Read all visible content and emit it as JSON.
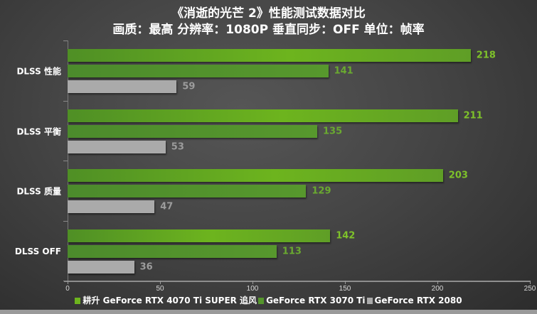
{
  "title": {
    "line1": "《消逝的光芒 2》性能测试数据对比",
    "line2": "画质：最高 分辨率：1080P 垂直同步：OFF 单位：帧率"
  },
  "chart_data": {
    "type": "bar",
    "orientation": "horizontal",
    "title": "《消逝的光芒 2》性能测试数据对比",
    "subtitle": "画质：最高 分辨率：1080P 垂直同步：OFF 单位：帧率",
    "categories": [
      "DLSS 性能",
      "DLSS 平衡",
      "DLSS 质量",
      "DLSS OFF"
    ],
    "series": [
      {
        "name": "耕升 GeForce RTX 4070 Ti SUPER 追风",
        "color": "#6db41e",
        "values": [
          218,
          211,
          203,
          142
        ]
      },
      {
        "name": "GeForce RTX 3070 Ti",
        "color": "#55962c",
        "values": [
          141,
          135,
          129,
          113
        ]
      },
      {
        "name": "GeForce RTX 2080",
        "color": "#aaaaaa",
        "values": [
          59,
          53,
          47,
          36
        ]
      }
    ],
    "xlabel": "",
    "ylabel": "",
    "xlim": [
      0,
      250
    ],
    "xticks": [
      0,
      50,
      100,
      150,
      200,
      250
    ],
    "grid": false,
    "legend_position": "bottom"
  },
  "legend": [
    {
      "label": "耕升 GeForce RTX 4070 Ti SUPER 追风",
      "color": "#6db41e"
    },
    {
      "label": "GeForce RTX 3070 Ti",
      "color": "#55962c"
    },
    {
      "label": "GeForce RTX 2080",
      "color": "#aaaaaa"
    }
  ]
}
